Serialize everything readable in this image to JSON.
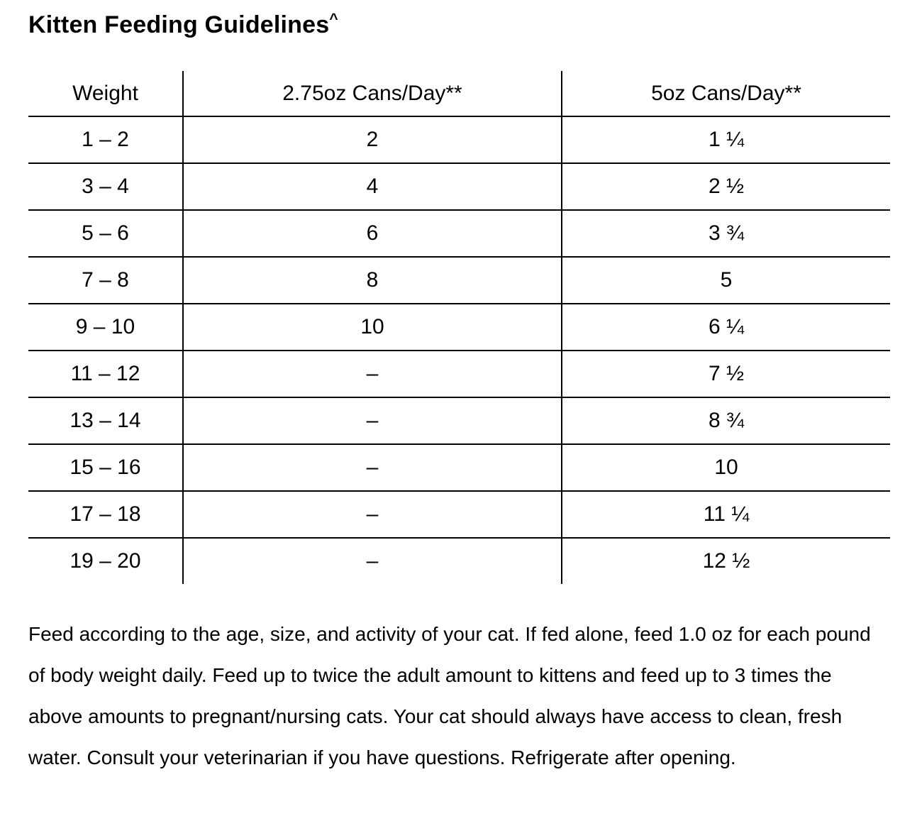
{
  "title": {
    "text": "Kitten Feeding Guidelines",
    "superscript": "^"
  },
  "table": {
    "columns": [
      "Weight",
      "2.75oz Cans/Day**",
      "5oz Cans/Day**"
    ],
    "rows": [
      [
        "1 – 2",
        "2",
        "1 ¼"
      ],
      [
        "3 – 4",
        "4",
        "2 ½"
      ],
      [
        "5 – 6",
        "6",
        "3 ¾"
      ],
      [
        "7 – 8",
        "8",
        "5"
      ],
      [
        "9 – 10",
        "10",
        "6 ¼"
      ],
      [
        "11 – 12",
        "–",
        "7 ½"
      ],
      [
        "13 – 14",
        "–",
        "8 ¾"
      ],
      [
        "15 – 16",
        "–",
        "10"
      ],
      [
        "17 – 18",
        "–",
        "11 ¼"
      ],
      [
        "19 – 20",
        "–",
        "12 ½"
      ]
    ]
  },
  "footer": {
    "text": "Feed according to the age, size, and activity of your cat. If fed alone, feed 1.0 oz for each pound of body weight daily. Feed up to twice the adult amount to kittens and feed up to 3 times the above amounts to pregnant/nursing cats. Your cat should always have access to clean, fresh water. Consult your veterinarian if you have questions. Refrigerate after opening."
  }
}
